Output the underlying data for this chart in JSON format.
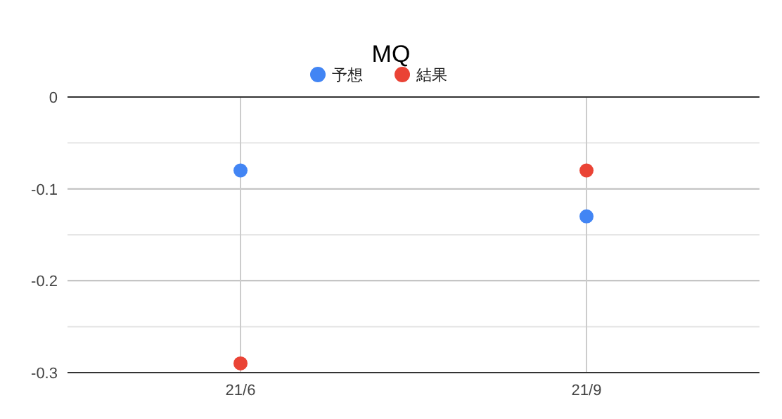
{
  "chart_data": {
    "type": "scatter",
    "title": "MQ",
    "categories": [
      "21/6",
      "21/9"
    ],
    "series": [
      {
        "name": "予想",
        "color": "#4285f4",
        "values": [
          -0.08,
          -0.13
        ]
      },
      {
        "name": "結果",
        "color": "#ea4335",
        "values": [
          -0.29,
          -0.08
        ]
      }
    ],
    "ylim": [
      -0.3,
      0
    ],
    "yticks": [
      -0.3,
      {
        "value": -0.25,
        "label": null
      },
      -0.2,
      {
        "value": -0.15,
        "label": null
      },
      -0.1,
      {
        "value": -0.05,
        "label": null
      },
      0
    ],
    "grid": true,
    "legend": "top",
    "marker": "circle"
  }
}
